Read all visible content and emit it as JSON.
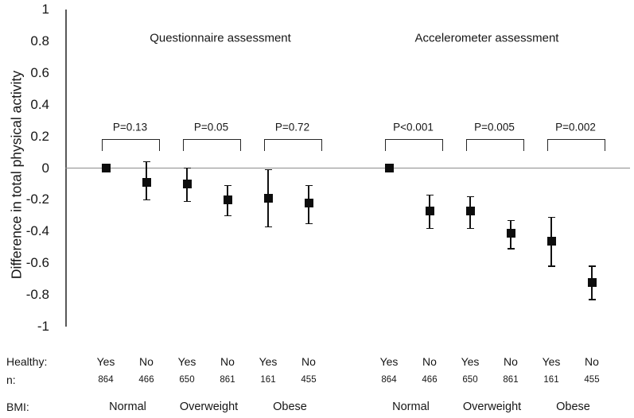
{
  "figure": {
    "ylabel": "Difference in total physical activity",
    "yticks": [
      "1",
      "0.8",
      "0.6",
      "0.4",
      "0.2",
      "0",
      "-0.2",
      "-0.4",
      "-0.6",
      "-0.8",
      "-1"
    ]
  },
  "footer": {
    "healthy_label": "Healthy:",
    "n_label": "n:",
    "bmi_label": "BMI:"
  },
  "chart_data": {
    "type": "scatter",
    "title": "",
    "xlabel": "",
    "ylabel": "Difference in total physical activity",
    "ylim": [
      -1,
      1
    ],
    "ytick_step": 0.2,
    "grid": false,
    "zero_reference_line": true,
    "marker": "black-square-with-error-bars",
    "groups": [
      {
        "assessment": "Questionnaire assessment",
        "pairs": [
          {
            "bmi": "Normal",
            "p": "P=0.13",
            "points": [
              {
                "healthy": "Yes",
                "n": "864",
                "value": 0,
                "ci": null
              },
              {
                "healthy": "No",
                "n": "466",
                "value": -0.09,
                "ci": [
                  -0.2,
                  0.04
                ]
              }
            ]
          },
          {
            "bmi": "Overweight",
            "p": "P=0.05",
            "points": [
              {
                "healthy": "Yes",
                "n": "650",
                "value": -0.1,
                "ci": [
                  -0.21,
                  0.0
                ]
              },
              {
                "healthy": "No",
                "n": "861",
                "value": -0.2,
                "ci": [
                  -0.3,
                  -0.11
                ]
              }
            ]
          },
          {
            "bmi": "Obese",
            "p": "P=0.72",
            "points": [
              {
                "healthy": "Yes",
                "n": "161",
                "value": -0.19,
                "ci": [
                  -0.37,
                  -0.01
                ]
              },
              {
                "healthy": "No",
                "n": "455",
                "value": -0.22,
                "ci": [
                  -0.35,
                  -0.11
                ]
              }
            ]
          }
        ]
      },
      {
        "assessment": "Accelerometer assessment",
        "pairs": [
          {
            "bmi": "Normal",
            "p": "P<0.001",
            "points": [
              {
                "healthy": "Yes",
                "n": "864",
                "value": 0,
                "ci": null
              },
              {
                "healthy": "No",
                "n": "466",
                "value": -0.27,
                "ci": [
                  -0.38,
                  -0.17
                ]
              }
            ]
          },
          {
            "bmi": "Overweight",
            "p": "P=0.005",
            "points": [
              {
                "healthy": "Yes",
                "n": "650",
                "value": -0.27,
                "ci": [
                  -0.38,
                  -0.18
                ]
              },
              {
                "healthy": "No",
                "n": "861",
                "value": -0.41,
                "ci": [
                  -0.51,
                  -0.33
                ]
              }
            ]
          },
          {
            "bmi": "Obese",
            "p": "P=0.002",
            "points": [
              {
                "healthy": "Yes",
                "n": "161",
                "value": -0.46,
                "ci": [
                  -0.62,
                  -0.31
                ]
              },
              {
                "healthy": "No",
                "n": "455",
                "value": -0.72,
                "ci": [
                  -0.83,
                  -0.62
                ]
              }
            ]
          }
        ]
      }
    ]
  }
}
